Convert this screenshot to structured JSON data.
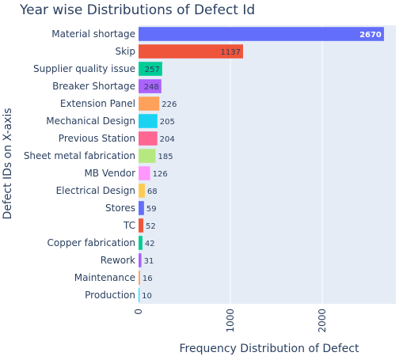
{
  "chart_data": {
    "type": "bar",
    "orientation": "horizontal",
    "title": "Year wise Distributions of Defect Id",
    "xlabel": "Frequency Distribution of Defect",
    "ylabel": "Defect IDs on X-axis",
    "xlim": [
      0,
      2800
    ],
    "x_ticks": [
      "0",
      "1000",
      "2000"
    ],
    "grid": true,
    "categories": [
      "Material shortage",
      "Skip",
      "Supplier quality issue",
      "Breaker Shortage",
      "Extension Panel",
      "Mechanical Design",
      "Previous Station",
      "Sheet metal fabrication",
      "MB Vendor",
      "Electrical Design",
      "Stores",
      "TC",
      "Copper fabrication",
      "Rework",
      "Maintenance",
      "Production"
    ],
    "values": [
      2670,
      1137,
      257,
      248,
      226,
      205,
      204,
      185,
      126,
      68,
      59,
      52,
      42,
      31,
      16,
      10
    ],
    "value_labels": [
      "2670",
      "1137",
      "257",
      "248",
      "226",
      "205",
      "204",
      "185",
      "126",
      "68",
      "59",
      "52",
      "42",
      "31",
      "16",
      "10"
    ],
    "colors": [
      "#636efa",
      "#ef553b",
      "#00cc96",
      "#ab63fa",
      "#ffa15a",
      "#19d3f3",
      "#ff6692",
      "#b6e880",
      "#ff97ff",
      "#fecb52",
      "#636efa",
      "#ef553b",
      "#00cc96",
      "#ab63fa",
      "#ffa15a",
      "#19d3f3"
    ],
    "plot_bg": "#e5ecf6"
  }
}
